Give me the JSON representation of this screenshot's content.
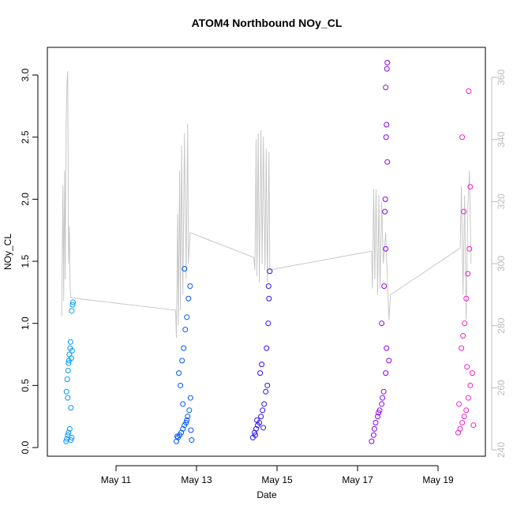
{
  "chart_data": {
    "type": "scatter",
    "title": "ATOM4 Northbound NOy_CL",
    "x_label": "Date",
    "y_label": "NOy_CL",
    "xlim": [
      9.294,
      20.176
    ],
    "xticks": [
      {
        "value": 11,
        "label": "May 11"
      },
      {
        "value": 13,
        "label": "May 13"
      },
      {
        "value": 15,
        "label": "May 15"
      },
      {
        "value": 17,
        "label": "May 17"
      },
      {
        "value": 19,
        "label": "May 19"
      }
    ],
    "ylim": [
      -0.07,
      3.223
    ],
    "yticks": [
      {
        "value": 0,
        "label": "0.0"
      },
      0.5,
      {
        "value": 1,
        "label": "1.0"
      },
      1.5,
      {
        "value": 2,
        "label": "2.0"
      },
      2.5,
      {
        "value": 3,
        "label": "3.0"
      }
    ],
    "y2lim": [
      237.97,
      369.66
    ],
    "y2ticks": [
      240,
      260,
      280,
      300,
      320,
      340,
      360
    ],
    "series": [
      {
        "color": "#0099ff",
        "x": [
          9.76,
          9.78,
          9.8,
          9.82,
          9.85,
          9.88,
          9.9,
          9.77,
          9.79,
          9.81,
          9.83,
          9.84,
          9.86,
          9.87,
          9.89,
          9.91,
          9.9,
          9.92,
          9.93,
          9.88,
          9.82,
          9.8
        ],
        "values": [
          0.05,
          0.07,
          0.1,
          0.12,
          0.15,
          0.06,
          0.08,
          0.45,
          0.55,
          0.62,
          0.7,
          0.75,
          0.8,
          0.85,
          0.72,
          0.78,
          1.1,
          1.15,
          1.17,
          0.32,
          0.68,
          0.4
        ]
      },
      {
        "color": "#0055ff",
        "x": [
          12.5,
          12.54,
          12.58,
          12.62,
          12.66,
          12.7,
          12.74,
          12.78,
          12.82,
          12.85,
          12.6,
          12.64,
          12.68,
          12.72,
          12.76,
          12.8,
          12.84,
          12.7,
          12.56,
          12.66,
          12.76,
          12.86,
          12.52,
          12.88
        ],
        "values": [
          0.05,
          0.08,
          0.1,
          0.12,
          0.15,
          0.18,
          0.2,
          0.25,
          0.3,
          0.4,
          0.5,
          0.7,
          0.8,
          0.95,
          1.05,
          1.2,
          1.3,
          1.44,
          0.6,
          0.35,
          0.22,
          0.14,
          0.09,
          0.06
        ]
      },
      {
        "color": "#2a10ff",
        "x": [
          14.4,
          14.44,
          14.48,
          14.52,
          14.56,
          14.6,
          14.64,
          14.68,
          14.72,
          14.76,
          14.58,
          14.62,
          14.74,
          14.78,
          14.8,
          14.79,
          14.82,
          14.5,
          14.66,
          14.46
        ],
        "values": [
          0.08,
          0.12,
          0.15,
          0.18,
          0.2,
          0.25,
          0.3,
          0.35,
          0.45,
          0.5,
          0.6,
          0.67,
          0.8,
          1.0,
          1.2,
          1.3,
          1.42,
          0.22,
          0.16,
          0.1
        ]
      },
      {
        "color": "#8a00ff",
        "x": [
          17.35,
          17.4,
          17.45,
          17.5,
          17.55,
          17.6,
          17.65,
          17.7,
          17.72,
          17.6,
          17.66,
          17.7,
          17.68,
          17.74,
          17.72,
          17.7,
          17.73,
          17.74,
          17.42,
          17.52,
          17.62,
          17.78,
          17.69,
          17.71
        ],
        "values": [
          0.05,
          0.1,
          0.2,
          0.25,
          0.3,
          0.35,
          0.45,
          0.6,
          0.8,
          1.0,
          1.3,
          1.6,
          1.9,
          2.3,
          2.6,
          2.9,
          3.05,
          3.1,
          0.15,
          0.28,
          0.4,
          0.7,
          2.0,
          2.5
        ]
      },
      {
        "color": "#f020c8",
        "x": [
          19.5,
          19.55,
          19.6,
          19.65,
          19.7,
          19.75,
          19.8,
          19.85,
          19.58,
          19.62,
          19.66,
          19.7,
          19.74,
          19.78,
          19.64,
          19.8,
          19.6,
          19.76,
          19.88,
          19.52,
          19.72
        ],
        "values": [
          0.12,
          0.15,
          0.2,
          0.25,
          0.3,
          0.4,
          0.5,
          0.6,
          0.8,
          0.9,
          1.0,
          1.2,
          1.4,
          1.6,
          1.9,
          2.1,
          2.5,
          2.87,
          0.18,
          0.35,
          0.65
        ]
      }
    ],
    "line": {
      "color": "#c8c8c8",
      "axis": "y2",
      "x": [
        9.65,
        9.68,
        9.7,
        9.72,
        9.74,
        9.76,
        9.78,
        9.8,
        9.82,
        9.84,
        9.86,
        9.88,
        12.48,
        12.5,
        12.53,
        12.55,
        12.58,
        12.6,
        12.63,
        12.66,
        12.7,
        12.74,
        12.78,
        12.8,
        12.84,
        14.42,
        14.45,
        14.48,
        14.5,
        14.53,
        14.56,
        14.6,
        14.63,
        14.66,
        14.7,
        14.73,
        14.76,
        14.8,
        14.82,
        17.35,
        17.37,
        17.4,
        17.43,
        17.46,
        17.5,
        17.53,
        17.56,
        17.6,
        17.64,
        17.7,
        17.78,
        17.82,
        19.55,
        19.58,
        19.62,
        19.66,
        19.7,
        19.74,
        19.78,
        19.82
      ],
      "values": [
        283,
        325,
        288,
        330,
        295,
        345,
        358,
        362,
        300,
        312,
        292,
        289,
        285,
        276,
        316,
        280,
        330,
        285,
        338,
        290,
        342,
        295,
        345,
        300,
        310,
        302,
        298,
        340,
        296,
        342,
        294,
        343,
        300,
        341,
        298,
        337,
        294,
        336,
        298,
        304,
        292,
        324,
        295,
        324,
        290,
        322,
        292,
        320,
        300,
        310,
        282,
        290,
        305,
        325,
        290,
        322,
        282,
        318,
        330,
        300
      ]
    }
  }
}
